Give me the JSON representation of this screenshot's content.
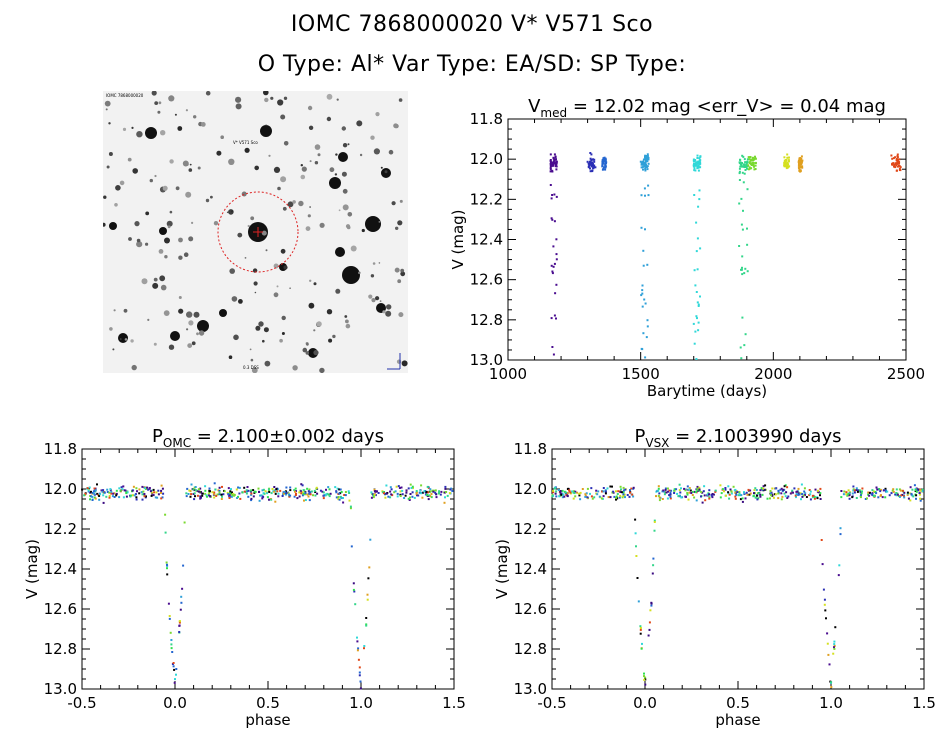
{
  "header": {
    "line1": "IOMC 7868000020    V* V571 Sco",
    "line2": "O Type: Al*  Var Type: EA/SD:  SP Type:"
  },
  "finder": {
    "top_left_label": "IOMC 7868000020",
    "target_label": "V* V571 Sco",
    "bottom_label": "0.3 DSS",
    "circle_color": "#dd2222"
  },
  "chart_data": [
    {
      "id": "lightcurve",
      "type": "scatter",
      "title_main": "V",
      "title_sub": "med",
      "title_rest": " = 12.02 mag <err_V> = 0.04 mag",
      "xlabel": "Barytime (days)",
      "ylabel": "V (mag)",
      "xlim": [
        1000,
        2500
      ],
      "ylim": [
        13.0,
        11.8
      ],
      "xticks": [
        "1000",
        "1500",
        "2000",
        "2500"
      ],
      "yticks": [
        "11.8",
        "12.0",
        "12.2",
        "12.4",
        "12.6",
        "12.8",
        "13.0"
      ],
      "grid": false,
      "groups": [
        {
          "x_range": [
            1160,
            1185
          ],
          "color": "#4a0d8f",
          "eclipse": true
        },
        {
          "x_range": [
            1300,
            1330
          ],
          "color": "#2b2fb5",
          "eclipse": false
        },
        {
          "x_range": [
            1355,
            1370
          ],
          "color": "#2466d0",
          "eclipse": false
        },
        {
          "x_range": [
            1500,
            1530
          ],
          "color": "#2fa0d8",
          "eclipse": true
        },
        {
          "x_range": [
            1700,
            1725
          ],
          "color": "#30d8d8",
          "eclipse": true
        },
        {
          "x_range": [
            1870,
            1905
          ],
          "color": "#33d68a",
          "eclipse": true
        },
        {
          "x_range": [
            1905,
            1935
          ],
          "color": "#7ad930",
          "eclipse": false
        },
        {
          "x_range": [
            2040,
            2060
          ],
          "color": "#d5e020",
          "eclipse": false
        },
        {
          "x_range": [
            2095,
            2110
          ],
          "color": "#e0a020",
          "eclipse": false
        },
        {
          "x_range": [
            2445,
            2480
          ],
          "color": "#e04818",
          "eclipse": false
        }
      ]
    },
    {
      "id": "phase_omc",
      "type": "scatter",
      "title_main": "P",
      "title_sub": "OMC",
      "title_rest": " = 2.100±0.002 days",
      "xlabel": "phase",
      "ylabel": "V (mag)",
      "xlim": [
        -0.5,
        1.5
      ],
      "ylim": [
        13.0,
        11.8
      ],
      "xticks": [
        "-0.5",
        "0.0",
        "0.5",
        "1.0",
        "1.5"
      ],
      "yticks": [
        "11.8",
        "12.0",
        "12.2",
        "12.4",
        "12.6",
        "12.8",
        "13.0"
      ],
      "period_days": 2.1,
      "eclipse_phase": 0.0,
      "eclipse_depth_mag": 12.98,
      "out_of_eclipse_mag": 12.02,
      "grid": false
    },
    {
      "id": "phase_vsx",
      "type": "scatter",
      "title_main": "P",
      "title_sub": "VSX",
      "title_rest": " = 2.1003990 days",
      "xlabel": "phase",
      "ylabel": "V (mag)",
      "xlim": [
        -0.5,
        1.5
      ],
      "ylim": [
        13.0,
        11.8
      ],
      "xticks": [
        "-0.5",
        "0.0",
        "0.5",
        "1.0",
        "1.5"
      ],
      "yticks": [
        "11.8",
        "12.0",
        "12.2",
        "12.4",
        "12.6",
        "12.8",
        "13.0"
      ],
      "period_days": 2.100399,
      "eclipse_phase": 0.0,
      "eclipse_depth_mag": 12.98,
      "out_of_eclipse_mag": 12.02,
      "grid": false
    }
  ]
}
